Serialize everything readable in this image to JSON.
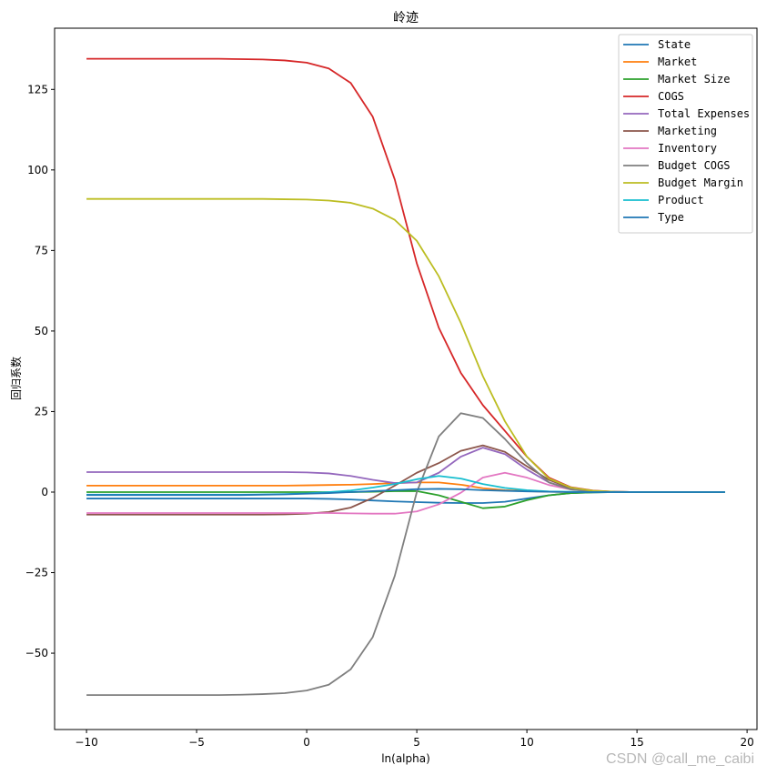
{
  "chart_data": {
    "type": "line",
    "title": "岭迹",
    "xlabel": "ln(alpha)",
    "ylabel": "回归系数",
    "xlim": [
      -11.45,
      20.45
    ],
    "ylim": [
      -73.7,
      144
    ],
    "xticks": [
      -10,
      -5,
      0,
      5,
      10,
      15,
      20
    ],
    "yticks": [
      -50,
      -25,
      0,
      25,
      50,
      75,
      100,
      125
    ],
    "xtick_labels": [
      "−10",
      "−5",
      "0",
      "5",
      "10",
      "15",
      "20"
    ],
    "ytick_labels": [
      "−50",
      "−25",
      "0",
      "25",
      "50",
      "75",
      "100",
      "125"
    ],
    "grid": false,
    "legend_position": "top-right",
    "x": [
      -10,
      -9,
      -8,
      -7,
      -6,
      -5,
      -4,
      -3,
      -2,
      -1,
      0,
      1,
      2,
      3,
      4,
      5,
      6,
      7,
      8,
      9,
      10,
      11,
      12,
      13,
      14,
      15,
      16,
      17,
      18,
      19
    ],
    "series": [
      {
        "name": "State",
        "color": "#1f77b4",
        "values": [
          -2,
          -2,
          -2,
          -2,
          -2,
          -2,
          -2,
          -2,
          -2,
          -2,
          -2,
          -2.1,
          -2.3,
          -2.6,
          -2.9,
          -3.1,
          -3.3,
          -3.4,
          -3.4,
          -3,
          -2,
          -1,
          -0.3,
          -0.1,
          0,
          0,
          0,
          0,
          0,
          0
        ]
      },
      {
        "name": "Market",
        "color": "#ff7f0e",
        "values": [
          2,
          2,
          2,
          2,
          2,
          2,
          2,
          2,
          2,
          2,
          2.1,
          2.2,
          2.3,
          2.5,
          2.8,
          3,
          3,
          2.3,
          1.2,
          0.6,
          0.3,
          0.1,
          0,
          0,
          0,
          0,
          0,
          0,
          0,
          0
        ]
      },
      {
        "name": "Market Size",
        "color": "#2ca02c",
        "values": [
          0,
          0,
          0,
          0,
          0,
          0,
          0,
          0,
          0,
          0,
          0,
          0,
          0,
          0.1,
          0.3,
          0.3,
          -1,
          -3,
          -5,
          -4.5,
          -2.5,
          -1,
          -0.3,
          -0.1,
          0,
          0,
          0,
          0,
          0,
          0
        ]
      },
      {
        "name": "COGS",
        "color": "#d62728",
        "values": [
          134.5,
          134.5,
          134.5,
          134.5,
          134.5,
          134.5,
          134.5,
          134.4,
          134.3,
          134,
          133.3,
          131.5,
          127,
          116.5,
          97,
          71,
          51,
          37,
          27,
          19,
          11,
          4.5,
          1.5,
          0.5,
          0.1,
          0,
          0,
          0,
          0,
          0
        ]
      },
      {
        "name": "Total Expenses",
        "color": "#9467bd",
        "values": [
          6.2,
          6.2,
          6.2,
          6.2,
          6.2,
          6.2,
          6.2,
          6.2,
          6.2,
          6.2,
          6.1,
          5.8,
          5,
          3.8,
          2.8,
          3,
          6,
          11,
          13.8,
          11.8,
          7,
          3,
          1,
          0.3,
          0.1,
          0,
          0,
          0,
          0,
          0
        ]
      },
      {
        "name": "Marketing",
        "color": "#8c564b",
        "values": [
          -7,
          -7,
          -7,
          -7,
          -7,
          -7,
          -7,
          -7,
          -7,
          -6.9,
          -6.7,
          -6.2,
          -4.8,
          -1.8,
          2,
          6,
          9,
          12.8,
          14.5,
          12.5,
          8,
          3.8,
          1.2,
          0.3,
          0.1,
          0,
          0,
          0,
          0,
          0
        ]
      },
      {
        "name": "Inventory",
        "color": "#e377c2",
        "values": [
          -6.5,
          -6.5,
          -6.5,
          -6.5,
          -6.5,
          -6.5,
          -6.5,
          -6.5,
          -6.5,
          -6.5,
          -6.5,
          -6.5,
          -6.6,
          -6.7,
          -6.7,
          -6,
          -3.8,
          -0.2,
          4.5,
          6,
          4.5,
          2.2,
          0.8,
          0.2,
          0,
          0,
          0,
          0,
          0,
          0
        ]
      },
      {
        "name": "Budget COGS",
        "color": "#7f7f7f",
        "values": [
          -63,
          -63,
          -63,
          -63,
          -63,
          -63,
          -63,
          -62.9,
          -62.7,
          -62.4,
          -61.6,
          -59.8,
          -55,
          -45,
          -26,
          0,
          17.3,
          24.5,
          23,
          16.5,
          9,
          3,
          0.8,
          0.2,
          0,
          0,
          0,
          0,
          0,
          0
        ]
      },
      {
        "name": "Budget Margin",
        "color": "#bcbd22",
        "values": [
          91,
          91,
          91,
          91,
          91,
          91,
          91,
          91,
          91,
          90.9,
          90.8,
          90.5,
          89.8,
          88,
          84.5,
          78,
          67,
          52.5,
          36,
          22,
          11,
          4.2,
          1.4,
          0.4,
          0.1,
          0,
          0,
          0,
          0,
          0
        ]
      },
      {
        "name": "Product",
        "color": "#17becf",
        "values": [
          -0.8,
          -0.8,
          -0.8,
          -0.8,
          -0.8,
          -0.8,
          -0.8,
          -0.8,
          -0.7,
          -0.6,
          -0.4,
          0,
          0.5,
          1.4,
          2.5,
          4,
          5,
          4.2,
          2.5,
          1.3,
          0.6,
          0.2,
          0.1,
          0,
          0,
          0,
          0,
          0,
          0,
          0
        ]
      },
      {
        "name": "Type",
        "color": "#1f77b4",
        "values": [
          -0.9,
          -0.9,
          -0.9,
          -0.9,
          -0.9,
          -0.9,
          -0.9,
          -0.9,
          -0.8,
          -0.7,
          -0.5,
          -0.3,
          0,
          0.3,
          0.6,
          0.9,
          1,
          0.9,
          0.6,
          0.4,
          0.2,
          0.1,
          0,
          0,
          0,
          0,
          0,
          0,
          0,
          0
        ]
      }
    ]
  },
  "watermark": "CSDN @call_me_caibi"
}
